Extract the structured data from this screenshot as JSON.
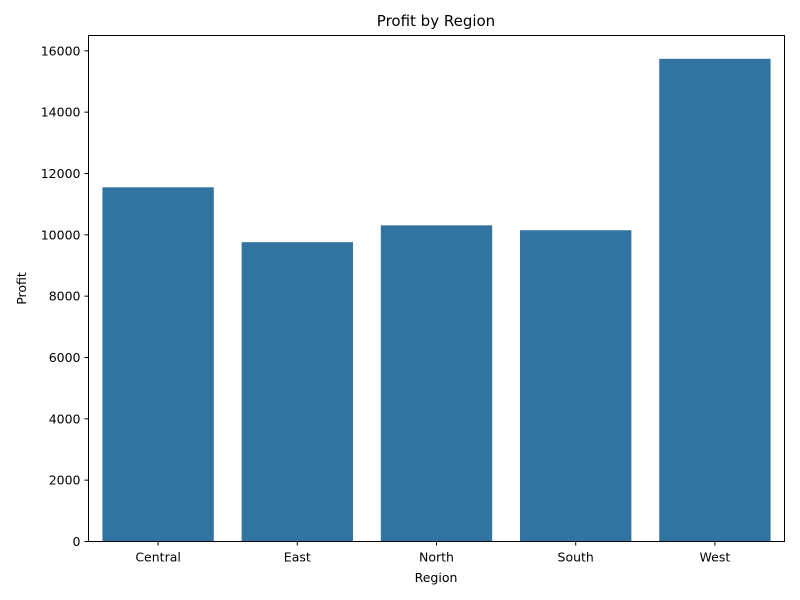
{
  "chart_data": {
    "type": "bar",
    "title": "Profit by Region",
    "xlabel": "Region",
    "ylabel": "Profit",
    "categories": [
      "Central",
      "East",
      "North",
      "South",
      "West"
    ],
    "values": [
      11550,
      9760,
      10310,
      10150,
      15740
    ],
    "ylim": [
      0,
      16500
    ],
    "yticks": [
      0,
      2000,
      4000,
      6000,
      8000,
      10000,
      12000,
      14000,
      16000
    ],
    "bar_color": "#3274a1",
    "grid": false,
    "legend": "none"
  }
}
